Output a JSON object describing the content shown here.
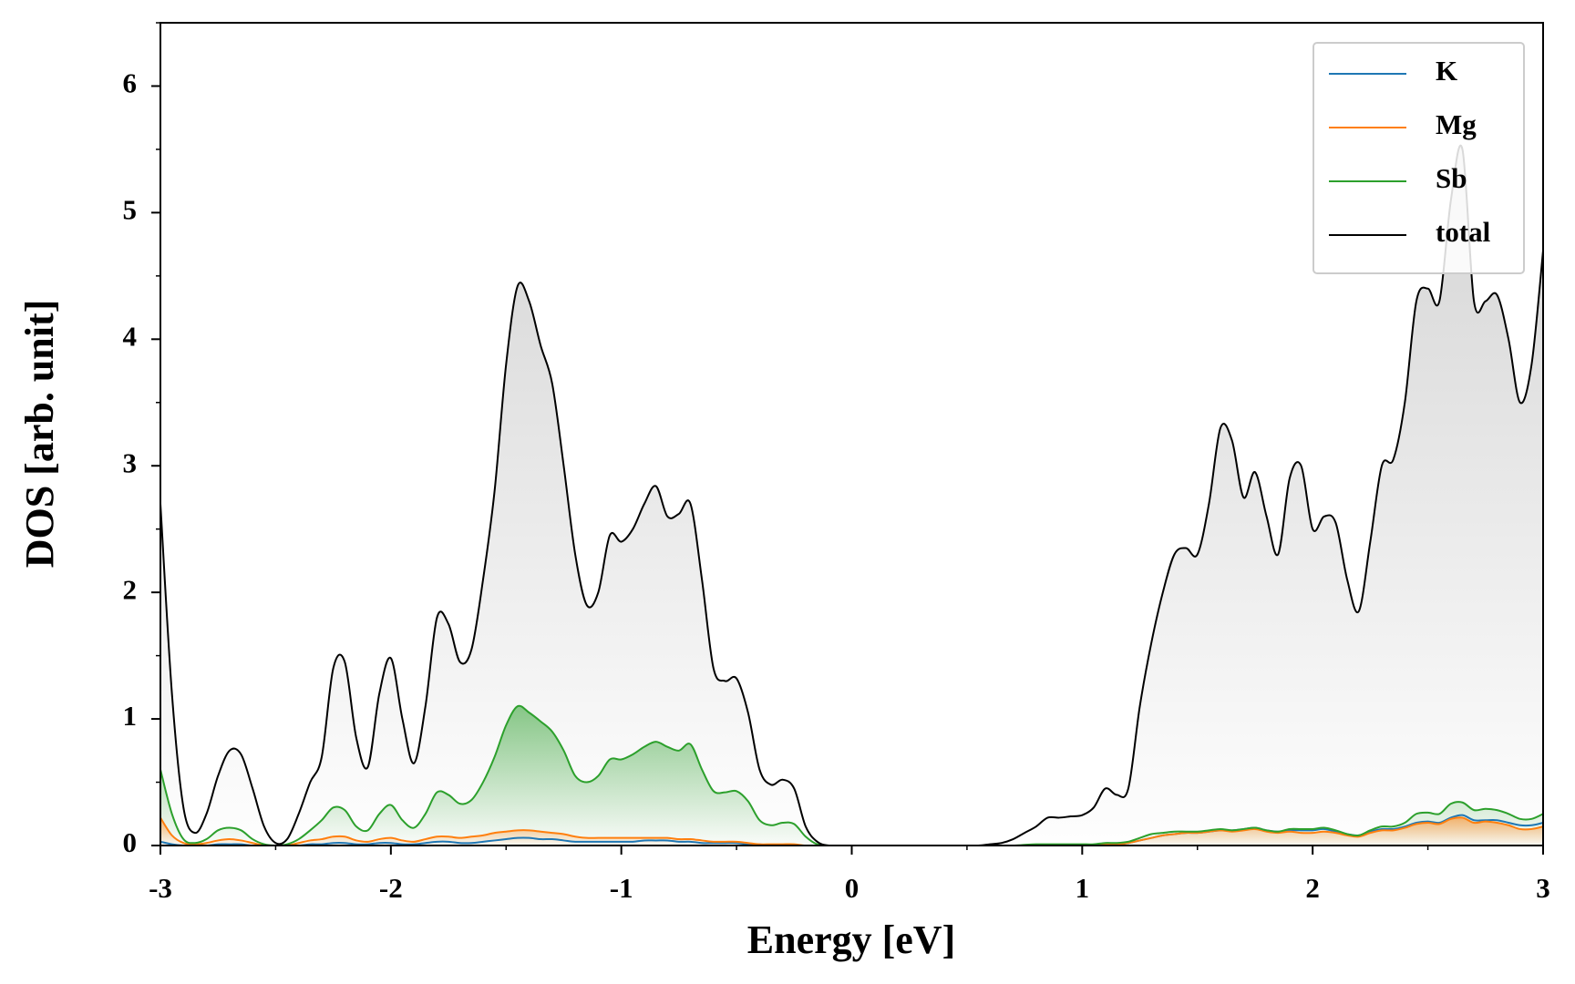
{
  "chart_data": {
    "type": "line",
    "xlabel": "Energy [eV]",
    "ylabel": "DOS [arb. unit]",
    "xlim": [
      -3,
      3
    ],
    "ylim": [
      0,
      6.5
    ],
    "xticks": [
      -3,
      -2,
      -1,
      0,
      1,
      2,
      3
    ],
    "yticks": [
      0,
      1,
      2,
      3,
      4,
      5,
      6
    ],
    "xticks_minor": [
      -2.5,
      -1.5,
      -0.5,
      0.5,
      1.5,
      2.5
    ],
    "yticks_minor": [
      0.5,
      1.5,
      2.5,
      3.5,
      4.5,
      5.5,
      6.5
    ],
    "legend": "upper right",
    "x": [
      -3,
      -2.95,
      -2.9,
      -2.85,
      -2.8,
      -2.75,
      -2.7,
      -2.65,
      -2.6,
      -2.55,
      -2.5,
      -2.45,
      -2.4,
      -2.35,
      -2.3,
      -2.25,
      -2.2,
      -2.15,
      -2.1,
      -2.05,
      -2,
      -1.95,
      -1.9,
      -1.85,
      -1.8,
      -1.75,
      -1.7,
      -1.65,
      -1.6,
      -1.55,
      -1.5,
      -1.45,
      -1.4,
      -1.35,
      -1.3,
      -1.25,
      -1.2,
      -1.15,
      -1.1,
      -1.05,
      -1,
      -0.95,
      -0.9,
      -0.85,
      -0.8,
      -0.75,
      -0.7,
      -0.65,
      -0.6,
      -0.55,
      -0.5,
      -0.45,
      -0.4,
      -0.35,
      -0.3,
      -0.25,
      -0.2,
      -0.15,
      -0.1,
      -0.05,
      0,
      0.05,
      0.1,
      0.15,
      0.2,
      0.25,
      0.3,
      0.35,
      0.4,
      0.45,
      0.5,
      0.55,
      0.6,
      0.65,
      0.7,
      0.75,
      0.8,
      0.85,
      0.9,
      0.95,
      1,
      1.05,
      1.1,
      1.15,
      1.2,
      1.25,
      1.3,
      1.35,
      1.4,
      1.45,
      1.5,
      1.55,
      1.6,
      1.65,
      1.7,
      1.75,
      1.8,
      1.85,
      1.9,
      1.95,
      2,
      2.05,
      2.1,
      2.15,
      2.2,
      2.25,
      2.3,
      2.35,
      2.4,
      2.45,
      2.5,
      2.55,
      2.6,
      2.65,
      2.7,
      2.75,
      2.8,
      2.85,
      2.9,
      2.95,
      3
    ],
    "series": [
      {
        "name": "K",
        "color": "#1f77b4",
        "fill": false,
        "values": [
          0.03,
          0.01,
          0,
          0,
          0,
          0.01,
          0.01,
          0.01,
          0,
          0,
          0,
          0,
          0,
          0.01,
          0.01,
          0.02,
          0.02,
          0.01,
          0.01,
          0.02,
          0.02,
          0.01,
          0.01,
          0.02,
          0.03,
          0.03,
          0.02,
          0.02,
          0.03,
          0.04,
          0.05,
          0.06,
          0.06,
          0.05,
          0.05,
          0.04,
          0.03,
          0.03,
          0.03,
          0.03,
          0.03,
          0.03,
          0.04,
          0.04,
          0.04,
          0.03,
          0.03,
          0.02,
          0.02,
          0.02,
          0.02,
          0.01,
          0.01,
          0,
          0,
          0,
          0,
          0,
          0,
          0,
          0,
          0,
          0,
          0,
          0,
          0,
          0,
          0,
          0,
          0,
          0,
          0,
          0,
          0,
          0,
          0,
          0,
          0,
          0,
          0,
          0,
          0,
          0.01,
          0.01,
          0.02,
          0.04,
          0.06,
          0.08,
          0.09,
          0.1,
          0.1,
          0.11,
          0.12,
          0.12,
          0.13,
          0.14,
          0.12,
          0.11,
          0.12,
          0.12,
          0.12,
          0.13,
          0.11,
          0.09,
          0.08,
          0.11,
          0.13,
          0.13,
          0.15,
          0.18,
          0.19,
          0.18,
          0.22,
          0.24,
          0.2,
          0.2,
          0.2,
          0.18,
          0.16,
          0.16,
          0.18
        ]
      },
      {
        "name": "Mg",
        "color": "#ff7f0e",
        "fill": true,
        "values": [
          0.22,
          0.08,
          0.02,
          0.01,
          0.02,
          0.04,
          0.05,
          0.04,
          0.02,
          0,
          0,
          0,
          0.02,
          0.04,
          0.05,
          0.07,
          0.07,
          0.04,
          0.03,
          0.05,
          0.06,
          0.04,
          0.03,
          0.05,
          0.07,
          0.07,
          0.06,
          0.07,
          0.08,
          0.1,
          0.11,
          0.12,
          0.12,
          0.11,
          0.1,
          0.09,
          0.07,
          0.06,
          0.06,
          0.06,
          0.06,
          0.06,
          0.06,
          0.06,
          0.06,
          0.05,
          0.05,
          0.04,
          0.03,
          0.03,
          0.03,
          0.02,
          0.01,
          0.01,
          0.01,
          0.01,
          0,
          0,
          0,
          0,
          0,
          0,
          0,
          0,
          0,
          0,
          0,
          0,
          0,
          0,
          0,
          0,
          0,
          0,
          0,
          0,
          0,
          0,
          0,
          0,
          0,
          0.005,
          0.01,
          0.01,
          0.02,
          0.04,
          0.06,
          0.08,
          0.09,
          0.1,
          0.1,
          0.11,
          0.12,
          0.11,
          0.12,
          0.13,
          0.11,
          0.1,
          0.11,
          0.1,
          0.1,
          0.11,
          0.1,
          0.08,
          0.07,
          0.1,
          0.12,
          0.12,
          0.14,
          0.17,
          0.18,
          0.17,
          0.21,
          0.22,
          0.18,
          0.19,
          0.18,
          0.16,
          0.13,
          0.13,
          0.15
        ]
      },
      {
        "name": "Sb",
        "color": "#2ca02c",
        "fill": true,
        "values": [
          0.6,
          0.25,
          0.05,
          0.02,
          0.05,
          0.12,
          0.14,
          0.12,
          0.05,
          0.01,
          0,
          0.01,
          0.05,
          0.12,
          0.2,
          0.3,
          0.28,
          0.15,
          0.12,
          0.25,
          0.32,
          0.2,
          0.14,
          0.25,
          0.42,
          0.4,
          0.33,
          0.36,
          0.5,
          0.7,
          0.95,
          1.1,
          1.05,
          0.98,
          0.9,
          0.75,
          0.55,
          0.5,
          0.55,
          0.68,
          0.68,
          0.72,
          0.78,
          0.82,
          0.78,
          0.75,
          0.8,
          0.6,
          0.43,
          0.42,
          0.43,
          0.35,
          0.2,
          0.16,
          0.18,
          0.17,
          0.07,
          0.01,
          0,
          0,
          0,
          0,
          0,
          0,
          0,
          0,
          0,
          0,
          0,
          0,
          0,
          0,
          0,
          0,
          0,
          0.005,
          0.01,
          0.01,
          0.01,
          0.01,
          0.01,
          0.01,
          0.02,
          0.02,
          0.03,
          0.06,
          0.09,
          0.1,
          0.11,
          0.11,
          0.11,
          0.12,
          0.13,
          0.12,
          0.13,
          0.14,
          0.12,
          0.11,
          0.13,
          0.13,
          0.13,
          0.14,
          0.12,
          0.09,
          0.08,
          0.12,
          0.15,
          0.15,
          0.18,
          0.25,
          0.26,
          0.25,
          0.33,
          0.34,
          0.28,
          0.29,
          0.28,
          0.25,
          0.21,
          0.21,
          0.25
        ]
      },
      {
        "name": "total",
        "color": "#000000",
        "fill": true,
        "values": [
          2.7,
          1.2,
          0.3,
          0.1,
          0.25,
          0.55,
          0.75,
          0.72,
          0.45,
          0.15,
          0.02,
          0.05,
          0.25,
          0.5,
          0.7,
          1.4,
          1.45,
          0.85,
          0.62,
          1.2,
          1.48,
          1.0,
          0.65,
          1.1,
          1.8,
          1.75,
          1.45,
          1.55,
          2.1,
          2.8,
          3.8,
          4.42,
          4.3,
          3.95,
          3.65,
          3.0,
          2.3,
          1.9,
          2.0,
          2.45,
          2.4,
          2.5,
          2.7,
          2.84,
          2.6,
          2.62,
          2.7,
          2.1,
          1.4,
          1.3,
          1.32,
          1.05,
          0.6,
          0.48,
          0.52,
          0.45,
          0.15,
          0.03,
          0,
          0,
          0,
          0,
          0,
          0,
          0,
          0,
          0,
          0,
          0,
          0,
          0,
          0,
          0.01,
          0.02,
          0.05,
          0.1,
          0.15,
          0.22,
          0.22,
          0.23,
          0.24,
          0.3,
          0.45,
          0.4,
          0.45,
          1.1,
          1.6,
          2.0,
          2.3,
          2.35,
          2.3,
          2.7,
          3.3,
          3.2,
          2.75,
          2.95,
          2.6,
          2.3,
          2.9,
          3.0,
          2.5,
          2.6,
          2.55,
          2.1,
          1.85,
          2.4,
          3.0,
          3.05,
          3.5,
          4.3,
          4.4,
          4.3,
          5.1,
          5.5,
          4.3,
          4.3,
          4.35,
          4.0,
          3.5,
          3.8,
          4.7
        ]
      }
    ]
  }
}
